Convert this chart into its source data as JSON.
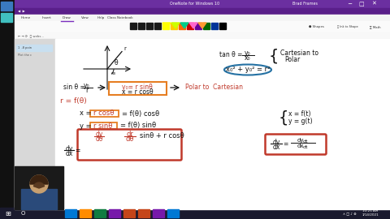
{
  "desktop_bg": "#1e6b3c",
  "taskbar_bg": "#1a1a2e",
  "title_bar_bg": "#6b2fa0",
  "ribbon_bg": "#f5f5f5",
  "toolbar_bg": "#fafafa",
  "notebook_bg": "#ffffff",
  "content_bg": "#efefef",
  "left_panel_bg": "#d8d8d8",
  "sidebar_bg": "#222222",
  "nav_bg": "#f8f8f8",
  "math_dark": "#1a1a1a",
  "math_pink": "#c0392b",
  "math_blue": "#1a5276",
  "box_orange": "#e67e22",
  "box_blue": "#2471a3",
  "purple": "#7B2FBE",
  "white": "#ffffff",
  "title_text": "OneNote for Windows 10",
  "tabs": [
    "Home",
    "Insert",
    "Draw",
    "View",
    "Help",
    "Class Notebook"
  ],
  "active_tab": "Draw"
}
